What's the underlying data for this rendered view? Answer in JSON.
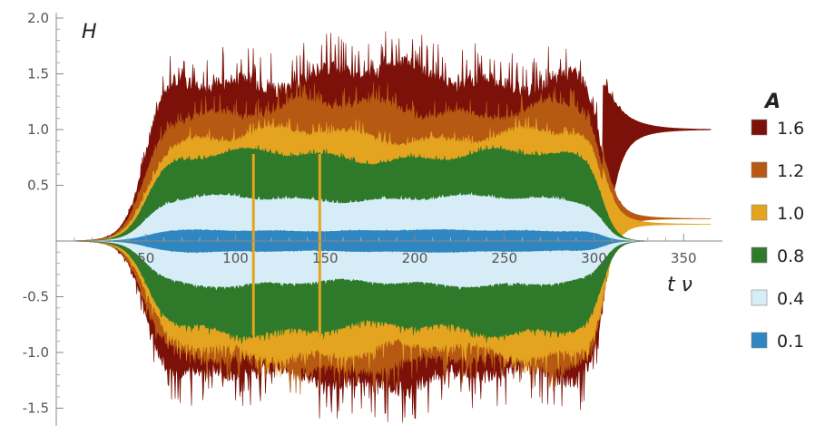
{
  "chart_data": {
    "type": "area",
    "title": "",
    "ylabel": "H",
    "xlabel": "t ν",
    "xlim": [
      0,
      365
    ],
    "ylim": [
      -1.68,
      2.03
    ],
    "x_ticks": [
      50,
      100,
      150,
      200,
      250,
      300,
      350
    ],
    "y_ticks": [
      -1.5,
      -1.0,
      -0.5,
      0.5,
      1.0,
      1.5,
      2.0
    ],
    "x_tick_labels": [
      "50",
      "100",
      "150",
      "200",
      "250",
      "300",
      "350"
    ],
    "y_tick_labels": [
      "-1.5",
      "-1.0",
      "-0.5",
      "0.5",
      "1.0",
      "1.5",
      "2.0"
    ],
    "grid": false,
    "legend": {
      "title": "A",
      "placement": "right"
    },
    "drive_window": {
      "rise_center": 50,
      "fall_center": 305
    },
    "series": [
      {
        "name": "1.6",
        "color": "#7b1109",
        "upper_mean": 1.4,
        "upper_max": 1.8,
        "lower_mean": -1.15,
        "lower_min": -1.55,
        "final_value": 1.0
      },
      {
        "name": "1.2",
        "color": "#b65a13",
        "upper_mean": 1.15,
        "upper_max": 1.35,
        "lower_mean": -1.05,
        "lower_min": -1.3,
        "final_value": 0.2
      },
      {
        "name": "1.0",
        "color": "#e4a420",
        "upper_mean": 0.92,
        "upper_max": 1.05,
        "lower_mean": -0.95,
        "lower_min": -1.15,
        "final_value": 0.15
      },
      {
        "name": "0.8",
        "color": "#2f7a2a",
        "upper_mean": 0.75,
        "upper_max": 0.8,
        "lower_mean": -0.77,
        "lower_min": -0.85,
        "final_value": 0.0
      },
      {
        "name": "0.4",
        "color": "#d6edf8",
        "upper_mean": 0.37,
        "upper_max": 0.4,
        "lower_mean": -0.37,
        "lower_min": -0.4,
        "final_value": 0.0
      },
      {
        "name": "0.1",
        "color": "#2f86c1",
        "upper_mean": 0.09,
        "upper_max": 0.1,
        "lower_mean": -0.09,
        "lower_min": -0.1,
        "final_value": 0.0
      }
    ]
  }
}
